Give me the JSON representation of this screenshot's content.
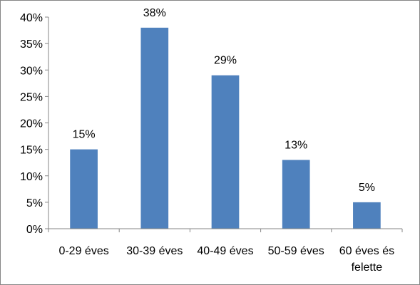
{
  "chart_data": {
    "type": "bar",
    "title": "",
    "xlabel": "",
    "ylabel": "",
    "categories": [
      [
        "0-29 éves"
      ],
      [
        "30-39 éves"
      ],
      [
        "40-49 éves"
      ],
      [
        "50-59 éves"
      ],
      [
        "60 éves és",
        "felette"
      ]
    ],
    "values": [
      15,
      38,
      29,
      13,
      5
    ],
    "data_labels": [
      "15%",
      "38%",
      "29%",
      "13%",
      "5%"
    ],
    "ylim": [
      0,
      40
    ],
    "y_ticks": [
      0,
      5,
      10,
      15,
      20,
      25,
      30,
      35,
      40
    ],
    "y_tick_labels": [
      "0%",
      "5%",
      "10%",
      "15%",
      "20%",
      "25%",
      "30%",
      "35%",
      "40%"
    ],
    "bar_color": "#4F81BD",
    "grid": false,
    "legend": "none"
  }
}
